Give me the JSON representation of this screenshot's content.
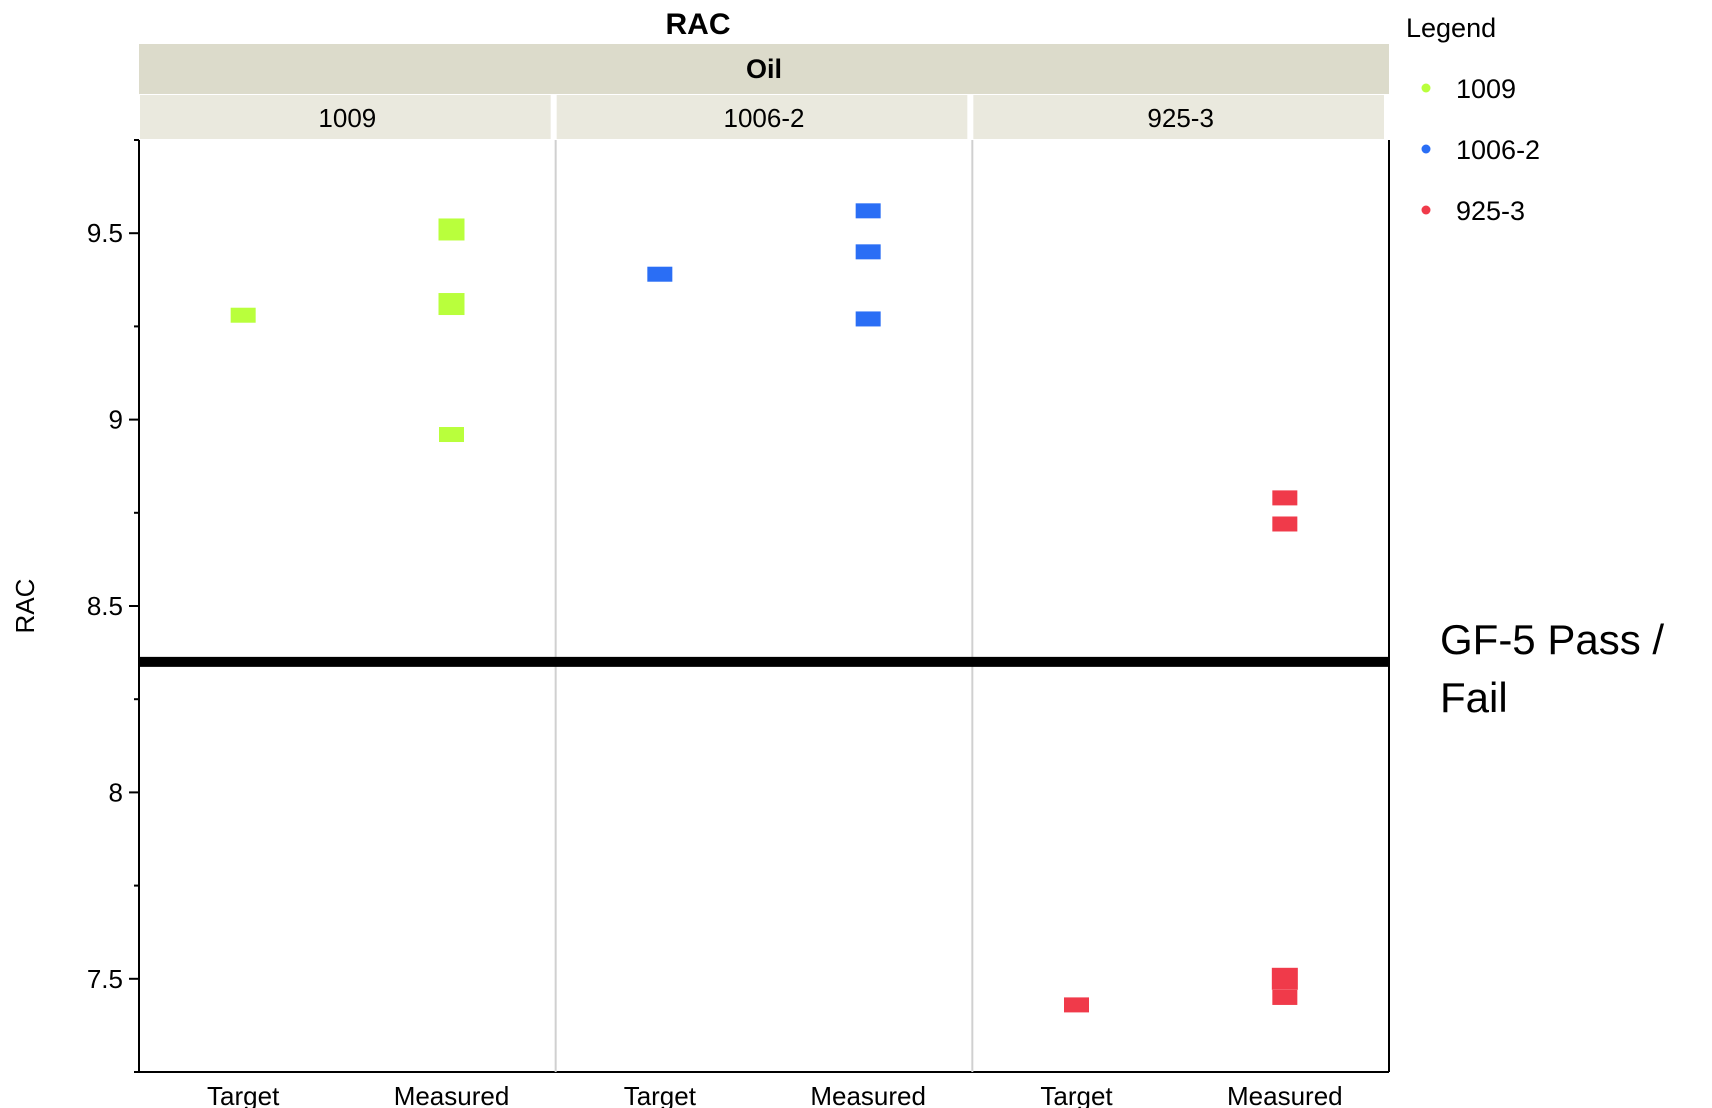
{
  "chart_data": {
    "type": "scatter",
    "title": "RAC",
    "group_label": "Oil",
    "ylabel": "RAC",
    "ylim": [
      7.25,
      9.75
    ],
    "yticks": [
      7.5,
      8,
      8.5,
      9,
      9.5
    ],
    "ytick_labels": [
      "7.5",
      "8",
      "8.5",
      "9",
      "9.5"
    ],
    "categories": [
      "Target",
      "Measured"
    ],
    "panels": [
      {
        "name": "1009",
        "color": "#b9ff3c",
        "points": [
          {
            "category": "Target",
            "y": 9.28,
            "size": "small"
          },
          {
            "category": "Measured",
            "y": 9.51,
            "size": "large"
          },
          {
            "category": "Measured",
            "y": 9.31,
            "size": "large"
          },
          {
            "category": "Measured",
            "y": 8.96,
            "size": "small"
          }
        ]
      },
      {
        "name": "1006-2",
        "color": "#2a6ef5",
        "points": [
          {
            "category": "Target",
            "y": 9.39,
            "size": "small"
          },
          {
            "category": "Measured",
            "y": 9.56,
            "size": "small"
          },
          {
            "category": "Measured",
            "y": 9.45,
            "size": "small"
          },
          {
            "category": "Measured",
            "y": 9.27,
            "size": "small"
          }
        ]
      },
      {
        "name": "925-3",
        "color": "#f03a4a",
        "points": [
          {
            "category": "Target",
            "y": 7.43,
            "size": "small"
          },
          {
            "category": "Measured",
            "y": 8.79,
            "size": "small"
          },
          {
            "category": "Measured",
            "y": 8.72,
            "size": "small"
          },
          {
            "category": "Measured",
            "y": 7.5,
            "size": "large"
          },
          {
            "category": "Measured",
            "y": 7.45,
            "size": "small"
          }
        ]
      }
    ],
    "reference_line": {
      "y": 8.35,
      "label_lines": [
        "GF-5 Pass /",
        "Fail"
      ]
    },
    "legend": {
      "title": "Legend",
      "placement": "right",
      "entries": [
        {
          "label": "1009",
          "color": "#b9ff3c"
        },
        {
          "label": "1006-2",
          "color": "#2a6ef5"
        },
        {
          "label": "925-3",
          "color": "#f03a4a"
        }
      ]
    },
    "grid": false
  }
}
